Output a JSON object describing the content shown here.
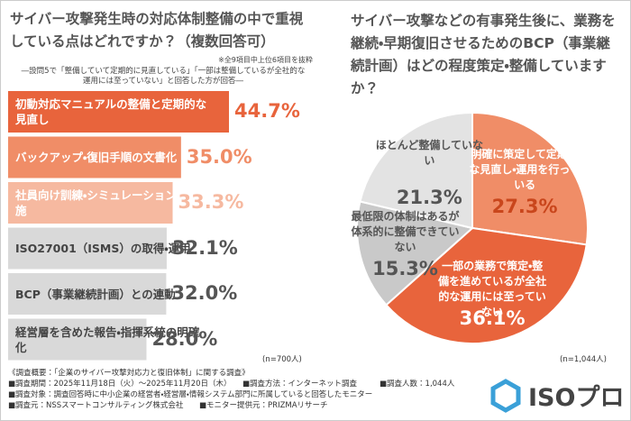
{
  "chart_data": [
    {
      "type": "bar",
      "title": "サイバー攻撃発生時の対応体制整備の中で重視している点はどれですか？（複数回答可）",
      "note": "※全9項目中上位6項目を抜粋",
      "subtitle": "―設問5で「整備していて定期的に見直している」「一部は整備しているが全社的な運用には至っていない」と回答した方が回答―",
      "categories": [
        "初動対応マニュアルの整備と定期的な見直し",
        "バックアップ・復旧手順の文書化",
        "社員向け訓練・シミュレーションの実施",
        "ISO27001（ISMS）の取得・運用",
        "BCP（事業継続計画）との連動",
        "経営層を含めた報告・指揮系統の明確化"
      ],
      "values": [
        44.7,
        35.0,
        33.3,
        32.1,
        32.0,
        28.0
      ],
      "value_labels": [
        "44.7%",
        "35.0%",
        "33.3%",
        "32.1%",
        "32.0%",
        "28.0%"
      ],
      "colors": [
        "#e8643c",
        "#f08d67",
        "#f6b9a0",
        "#d9d9d9",
        "#d9d9d9",
        "#d9d9d9"
      ],
      "category_colors": [
        "#ffffff",
        "#ffffff",
        "#ffffff",
        "#444444",
        "#444444",
        "#444444"
      ],
      "value_label_colors": [
        "#e8643c",
        "#f08d67",
        "#f6b9a0",
        "#555555",
        "#555555",
        "#555555"
      ],
      "sample": "(n=700人)"
    },
    {
      "type": "pie",
      "title": "サイバー攻撃などの有事発生後に、業務を継続・早期復旧させるためのBCP（事業継続計画）はどの程度策定・整備していますか？",
      "categories": [
        "明確に策定して定期的な見直し・運用を行っている",
        "一部の業務で策定・整備を進めているが全社的な運用には至っていない",
        "最低限の体制はあるが体系的に整備できていない",
        "ほとんど整備していない"
      ],
      "values": [
        27.3,
        36.1,
        15.3,
        21.3
      ],
      "value_labels": [
        "27.3%",
        "36.1%",
        "15.3%",
        "21.3%"
      ],
      "colors": [
        "#f08d67",
        "#e8643c",
        "#c9c9c9",
        "#e3e3e3"
      ],
      "category_colors": [
        "#ffffff",
        "#ffffff",
        "#555555",
        "#555555"
      ],
      "value_label_colors": [
        "#c9461c",
        "#ffffff",
        "#555555",
        "#555555"
      ],
      "sample": "(n=1,044人)"
    }
  ],
  "footer": {
    "heading": "《調査概要：「企業のサイバー攻撃対応力と復旧体制」に関する調査》",
    "items": [
      "■調査期間：2025年11月18日（火）～2025年11月20日（木）",
      "■調査方法：インターネット調査",
      "■調査人数：1,044人",
      "■調査対象：調査回答時に中小企業の経営者・経営層・情報システム部門に所属していると回答したモニター",
      "■調査元：NSSスマートコンサルティング株式会社",
      "■モニター提供元：PRIZMAリサーチ"
    ]
  },
  "logo": "ISOプロ"
}
